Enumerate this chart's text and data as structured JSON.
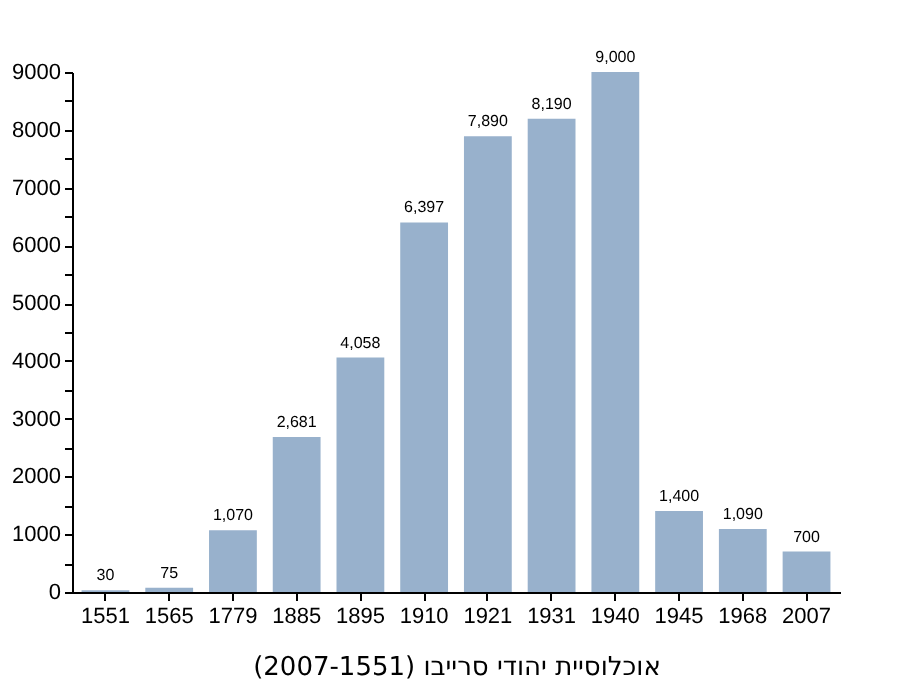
{
  "chart_data": {
    "type": "bar",
    "xlabel": "אוכלוסיית יהודי סרייבו (2007-1551)",
    "categories": [
      "1551",
      "1565",
      "1779",
      "1885",
      "1895",
      "1910",
      "1921",
      "1931",
      "1940",
      "1945",
      "1968",
      "2007"
    ],
    "values": [
      30,
      75,
      1070,
      2681,
      4058,
      6397,
      7890,
      8190,
      9000,
      1400,
      1090,
      700
    ],
    "color": "#98b1cc",
    "value_labels": [
      "30",
      "75",
      "1,070",
      "2,681",
      "4,058",
      "6,397",
      "7,890",
      "8,190",
      "9,000",
      "1,400",
      "1,090",
      "700"
    ],
    "ylim": [
      0,
      9000
    ],
    "yticks": [
      0,
      {
        "value": 500,
        "label": null
      },
      1000,
      {
        "value": 1500,
        "label": null
      },
      2000,
      {
        "value": 2500,
        "label": null
      },
      3000,
      {
        "value": 3500,
        "label": null
      },
      4000,
      {
        "value": 4500,
        "label": null
      },
      5000,
      {
        "value": 5500,
        "label": null
      },
      6000,
      {
        "value": 6500,
        "label": null
      },
      7000,
      {
        "value": 7500,
        "label": null
      },
      8000,
      {
        "value": 8500,
        "label": null
      },
      9000
    ],
    "grid": false
  }
}
